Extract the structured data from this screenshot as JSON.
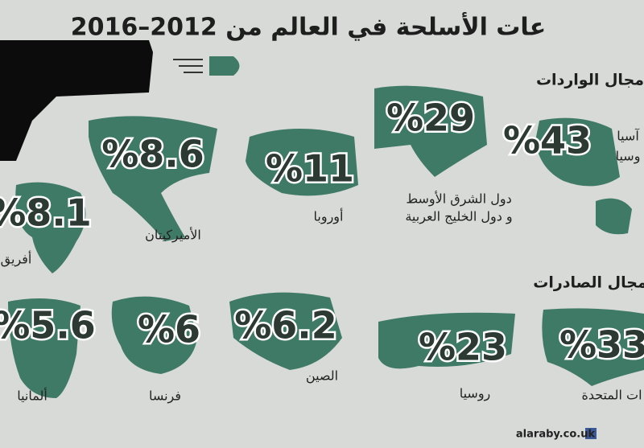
{
  "header": {
    "title": "عات الأسلحة في العالم من 2012–2016"
  },
  "imports": {
    "heading": "مجال الواردات",
    "items": [
      {
        "percent": "%43",
        "label": [
          "آسيا",
          "وسيا"
        ]
      },
      {
        "percent": "%29",
        "label": [
          "دول الشرق الأوسط",
          "و دول الخليج العربية"
        ]
      },
      {
        "percent": "%11",
        "label": [
          "أوروبا"
        ]
      },
      {
        "percent": "%8.6",
        "label": [
          "الأميركيتان"
        ]
      },
      {
        "percent": "%8.1",
        "label": [
          "أفريق"
        ]
      }
    ]
  },
  "exports": {
    "heading": "مجال الصادرات",
    "items": [
      {
        "percent": "%33",
        "label": [
          "ات المتحدة"
        ]
      },
      {
        "percent": "%23",
        "label": [
          "روسيا"
        ]
      },
      {
        "percent": "%6.2",
        "label": [
          "الصين"
        ]
      },
      {
        "percent": "%6",
        "label": [
          "فرنسا"
        ]
      },
      {
        "percent": "%5.6",
        "label": [
          "ألمانيا"
        ]
      }
    ]
  },
  "footer": {
    "source": "alaraby.co.uk"
  }
}
